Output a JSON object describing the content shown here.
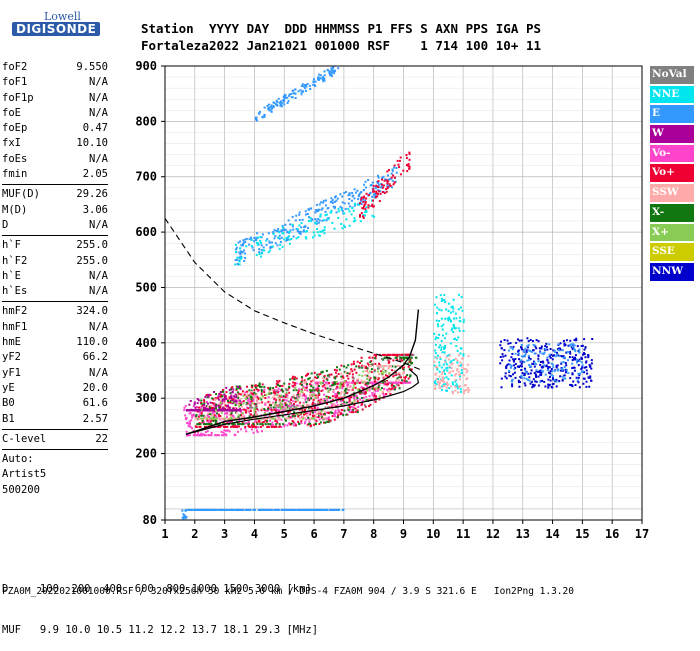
{
  "logo": {
    "brand": "Lowell",
    "product": "DIGISONDE"
  },
  "header": {
    "labels": [
      "Station",
      "YYYY DAY",
      "DDD",
      "HHMMSS",
      "P1",
      "FFS",
      "S",
      "AXN",
      "PPS",
      "IGA",
      "PS"
    ],
    "values": [
      "Fortaleza",
      "2022 Jan21",
      "021",
      "001000",
      "RSF",
      "",
      "1",
      "714",
      "100",
      "10+",
      "11"
    ]
  },
  "params": [
    {
      "name": "foF2",
      "value": "9.550"
    },
    {
      "name": "foF1",
      "value": "N/A"
    },
    {
      "name": "foF1p",
      "value": "N/A"
    },
    {
      "name": "foE",
      "value": "N/A"
    },
    {
      "name": "foEp",
      "value": "0.47"
    },
    {
      "name": "fxI",
      "value": "10.10"
    },
    {
      "name": "foEs",
      "value": "N/A"
    },
    {
      "name": "fmin",
      "value": "2.05"
    },
    {
      "sep": true
    },
    {
      "name": "MUF(D)",
      "value": "29.26"
    },
    {
      "name": "M(D)",
      "value": "3.06"
    },
    {
      "name": "D",
      "value": "N/A"
    },
    {
      "sep": true
    },
    {
      "name": "h`F",
      "value": "255.0"
    },
    {
      "name": "h`F2",
      "value": "255.0"
    },
    {
      "name": "h`E",
      "value": "N/A"
    },
    {
      "name": "h`Es",
      "value": "N/A"
    },
    {
      "sep": true
    },
    {
      "name": "hmF2",
      "value": "324.0"
    },
    {
      "name": "hmF1",
      "value": "N/A"
    },
    {
      "name": "hmE",
      "value": "110.0"
    },
    {
      "name": "yF2",
      "value": "66.2"
    },
    {
      "name": "yF1",
      "value": "N/A"
    },
    {
      "name": "yE",
      "value": "20.0"
    },
    {
      "name": "B0",
      "value": "61.6"
    },
    {
      "name": "B1",
      "value": "2.57"
    },
    {
      "sep": true
    },
    {
      "name": "C-level",
      "value": "22"
    },
    {
      "sep": true
    },
    {
      "name": "Auto:",
      "value": ""
    },
    {
      "name": "Artist5",
      "value": ""
    },
    {
      "name": "500200",
      "value": ""
    }
  ],
  "legend": [
    {
      "label": "NoVal",
      "color": "#808080"
    },
    {
      "label": "NNE",
      "color": "#00e5ee"
    },
    {
      "label": "E",
      "color": "#3399ff"
    },
    {
      "label": "W",
      "color": "#aa0099"
    },
    {
      "label": "Vo-",
      "color": "#ff44cc"
    },
    {
      "label": "Vo+",
      "color": "#ee0033"
    },
    {
      "label": "SSW",
      "color": "#ffaaaa"
    },
    {
      "label": "X-",
      "color": "#117711"
    },
    {
      "label": "X+",
      "color": "#88cc55"
    },
    {
      "label": "SSE",
      "color": "#cccc00"
    },
    {
      "label": "NNW",
      "color": "#0000cc"
    }
  ],
  "bottom": {
    "d_row": "D     100  200  400  600  800 1000 1500 3000 [km]",
    "muf_row": "MUF   9.9 10.0 10.5 11.2 12.2 13.7 18.1 29.3 [MHz]"
  },
  "footer": "FZA0M_2022021001000.RSF / 320fx256h 50 kHz 5.0 km / DPS-4 FZA0M 904 / 3.9 S 321.6 E   Ion2Png 1.3.20",
  "chart_data": {
    "type": "scatter",
    "xlim": [
      1,
      17
    ],
    "ylim": [
      80,
      900
    ],
    "xticks": [
      1,
      2,
      3,
      4,
      5,
      6,
      7,
      8,
      9,
      10,
      11,
      12,
      13,
      14,
      15,
      16,
      17
    ],
    "yticks": [
      80,
      200,
      300,
      400,
      500,
      600,
      700,
      800,
      900
    ],
    "grid": true,
    "legend_position": "right",
    "trace_curve": {
      "x": [
        1.7,
        2.0,
        3.0,
        4.0,
        5.0,
        6.0,
        7.0,
        8.0,
        8.5,
        9.0,
        9.2,
        9.4,
        9.5
      ],
      "y": [
        235,
        240,
        258,
        266,
        276,
        286,
        300,
        323,
        338,
        360,
        375,
        405,
        460
      ]
    },
    "solid_curve": {
      "x": [
        1.7,
        2.0,
        3.0,
        4.0,
        5.0,
        6.0,
        7.0,
        8.0,
        8.5,
        9.0,
        9.3,
        9.5,
        9.45,
        9.2
      ],
      "y": [
        235,
        239,
        253,
        262,
        270,
        278,
        286,
        297,
        304,
        312,
        320,
        328,
        340,
        352
      ]
    },
    "dashed_curve": {
      "x": [
        1.0,
        2.0,
        3.0,
        4.0,
        5.0,
        6.0,
        7.0,
        8.0,
        9.0,
        9.55
      ],
      "y": [
        625,
        545,
        492,
        458,
        436,
        416,
        398,
        381,
        364,
        352
      ]
    },
    "clusters": [
      {
        "color_index": 4,
        "x": [
          1.6,
          9.2
        ],
        "y": [
          235,
          330
        ],
        "n": 700
      },
      {
        "color_index": 5,
        "x": [
          2.0,
          9.3
        ],
        "y": [
          250,
          380
        ],
        "n": 650
      },
      {
        "color_index": 7,
        "x": [
          2.0,
          9.4
        ],
        "y": [
          255,
          375
        ],
        "n": 350
      },
      {
        "color_index": 6,
        "x": [
          2.0,
          9.0
        ],
        "y": [
          265,
          360
        ],
        "n": 250
      },
      {
        "color_index": 3,
        "x": [
          1.7,
          3.5
        ],
        "y": [
          280,
          420
        ],
        "n": 220
      },
      {
        "color_index": 8,
        "x": [
          2.0,
          8.5
        ],
        "y": [
          265,
          350
        ],
        "n": 120
      },
      {
        "color_index": 2,
        "x": [
          3.3,
          8.8
        ],
        "y": [
          540,
          720
        ],
        "n": 280
      },
      {
        "color_index": 1,
        "x": [
          3.3,
          8.0
        ],
        "y": [
          540,
          650
        ],
        "n": 120
      },
      {
        "color_index": 5,
        "x": [
          7.5,
          9.2
        ],
        "y": [
          620,
          740
        ],
        "n": 90
      },
      {
        "color_index": 2,
        "x": [
          4.0,
          6.8
        ],
        "y": [
          800,
          900
        ],
        "n": 140
      },
      {
        "color_index": 2,
        "x": [
          1.5,
          7.0
        ],
        "y": [
          82,
          100
        ],
        "n": 240
      },
      {
        "color_index": 1,
        "x": [
          10.0,
          11.0
        ],
        "y": [
          310,
          490
        ],
        "n": 160
      },
      {
        "color_index": 6,
        "x": [
          10.0,
          11.2
        ],
        "y": [
          310,
          380
        ],
        "n": 90
      },
      {
        "color_index": 10,
        "x": [
          12.2,
          15.3
        ],
        "y": [
          320,
          410
        ],
        "n": 330
      },
      {
        "color_index": 2,
        "x": [
          12.5,
          15.0
        ],
        "y": [
          330,
          400
        ],
        "n": 120
      },
      {
        "color_index": 0,
        "x": [
          3.5,
          9.3
        ],
        "y": [
          285,
          380
        ],
        "n": 50
      }
    ]
  }
}
